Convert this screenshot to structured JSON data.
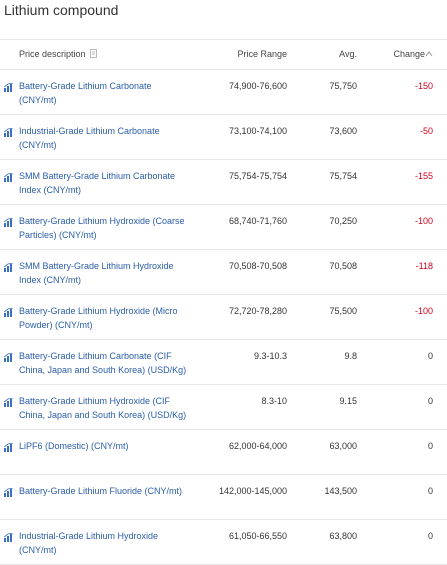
{
  "header": {
    "title": "Lithium compound"
  },
  "table": {
    "columns": [
      "Price description",
      "Price Range",
      "Avg.",
      "Change"
    ],
    "rows": [
      {
        "name": "Battery-Grade Lithium Carbonate (CNY/mt)",
        "range": "74,900-76,600",
        "avg": "75,750",
        "change": "-150"
      },
      {
        "name": "Industrial-Grade Lithium Carbonate (CNY/mt)",
        "range": "73,100-74,100",
        "avg": "73,600",
        "change": "-50"
      },
      {
        "name": "SMM Battery-Grade Lithium Carbonate Index (CNY/mt)",
        "range": "75,754-75,754",
        "avg": "75,754",
        "change": "-155"
      },
      {
        "name": "Battery-Grade Lithium Hydroxide (Coarse Particles) (CNY/mt)",
        "range": "68,740-71,760",
        "avg": "70,250",
        "change": "-100"
      },
      {
        "name": "SMM Battery-Grade Lithium Hydroxide Index (CNY/mt)",
        "range": "70,508-70,508",
        "avg": "70,508",
        "change": "-118"
      },
      {
        "name": "Battery-Grade Lithium Hydroxide (Micro Powder) (CNY/mt)",
        "range": "72,720-78,280",
        "avg": "75,500",
        "change": "-100"
      },
      {
        "name": "Battery-Grade Lithium Carbonate (CIF China, Japan and South Korea) (USD/Kg)",
        "range": "9.3-10.3",
        "avg": "9.8",
        "change": "0"
      },
      {
        "name": "Battery-Grade Lithium Hydroxide (CIF China, Japan and South Korea) (USD/Kg)",
        "range": "8.3-10",
        "avg": "9.15",
        "change": "0"
      },
      {
        "name": "LiPF6 (Domestic) (CNY/mt)",
        "range": "62,000-64,000",
        "avg": "63,000",
        "change": "0"
      },
      {
        "name": "Battery-Grade Lithium Fluoride (CNY/mt)",
        "range": "142,000-145,000",
        "avg": "143,500",
        "change": "0"
      },
      {
        "name": "Industrial-Grade Lithium Hydroxide (CNY/mt)",
        "range": "61,050-66,550",
        "avg": "63,800",
        "change": "0"
      }
    ]
  }
}
